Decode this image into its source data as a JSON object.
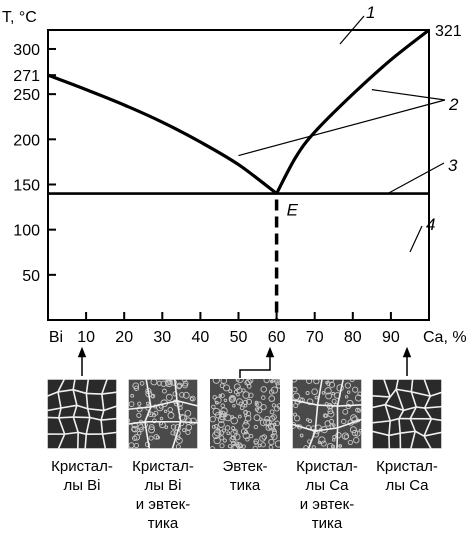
{
  "chart_data": {
    "type": "line",
    "y_unit_label": "T, °C",
    "x_unit_label": "Ca, %",
    "x_left_label": "Bi",
    "xlim": [
      0,
      100
    ],
    "ylim": [
      0,
      330
    ],
    "x_ticks": [
      10,
      20,
      30,
      40,
      50,
      60,
      70,
      80,
      90
    ],
    "y_ticks": [
      50,
      100,
      150,
      200,
      250,
      300
    ],
    "special_y_labels": [
      {
        "value": 271,
        "label": "271"
      },
      {
        "value": 321,
        "label": "321"
      }
    ],
    "series": [
      {
        "points": [
          [
            0,
            271
          ],
          [
            10,
            255
          ],
          [
            20,
            238
          ],
          [
            30,
            219
          ],
          [
            40,
            197
          ],
          [
            50,
            172
          ],
          [
            60,
            140
          ]
        ]
      },
      {
        "points": [
          [
            60,
            140
          ],
          [
            65,
            180
          ],
          [
            70,
            208
          ],
          [
            80,
            250
          ],
          [
            90,
            288
          ],
          [
            100,
            321
          ]
        ]
      }
    ],
    "eutectic": {
      "label": "E",
      "x": 60,
      "y": 140
    },
    "eutectic_line_y": 140,
    "callouts": [
      {
        "label": "1",
        "to": [
          80,
          300
        ]
      },
      {
        "label": "2",
        "to": [
          [
            85,
            255
          ],
          [
            50,
            182
          ]
        ]
      },
      {
        "label": "3",
        "to": [
          [
            85,
            140
          ]
        ]
      },
      {
        "label": "4",
        "to": [
          85,
          70
        ]
      }
    ]
  },
  "micrographs": [
    {
      "caption": "Кристал-\nлы Bi",
      "pattern": "large-grains"
    },
    {
      "caption": "Кристал-\nлы Bi\nи эвтек-\nтика",
      "pattern": "grains-and-eutectic"
    },
    {
      "caption": "Эвтек-\nтика",
      "pattern": "fine-eutectic"
    },
    {
      "caption": "Кристал-\nлы Ca\nи эвтек-\nтика",
      "pattern": "grains-and-eutectic"
    },
    {
      "caption": "Кристал-\nлы Ca",
      "pattern": "large-grains"
    }
  ]
}
